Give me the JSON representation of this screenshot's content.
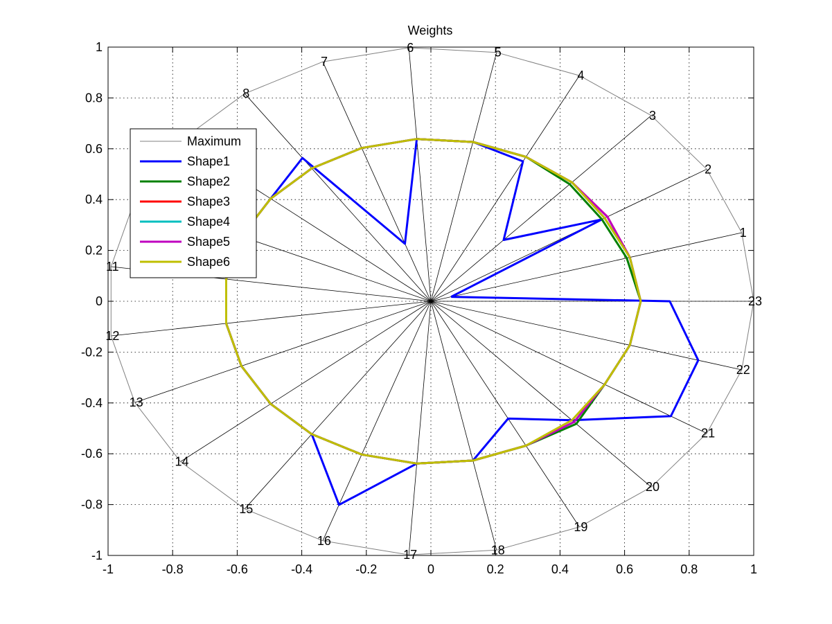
{
  "chart_data": {
    "type": "line",
    "title": "Weights",
    "xlabel": "",
    "ylabel": "",
    "xlim": [
      -1,
      1
    ],
    "ylim": [
      -1,
      1
    ],
    "xticks": [
      "-1",
      "-0.8",
      "-0.6",
      "-0.4",
      "-0.2",
      "0",
      "0.2",
      "0.4",
      "0.6",
      "0.8",
      "1"
    ],
    "yticks": [
      "-1",
      "-0.8",
      "-0.6",
      "-0.4",
      "-0.2",
      "0",
      "0.2",
      "0.4",
      "0.6",
      "0.8",
      "1"
    ],
    "grid": true,
    "legend_position": "upper-left",
    "categories": [
      "1",
      "2",
      "3",
      "4",
      "5",
      "6",
      "7",
      "8",
      "9",
      "10",
      "11",
      "12",
      "13",
      "14",
      "15",
      "16",
      "17",
      "18",
      "19",
      "20",
      "21",
      "22",
      "23"
    ],
    "series": [
      {
        "name": "Maximum",
        "color": "#808080",
        "values": [
          1,
          1,
          1,
          1,
          1,
          1,
          1,
          1,
          1,
          1,
          1,
          1,
          1,
          1,
          1,
          1,
          1,
          1,
          1,
          1,
          1,
          1,
          1
        ]
      },
      {
        "name": "Shape1",
        "color": "#0000ff",
        "values": [
          0.065,
          0.62,
          0.33,
          0.62,
          0.64,
          0.64,
          0.24,
          0.69,
          0.64,
          0.64,
          0.64,
          0.64,
          0.64,
          0.64,
          0.64,
          0.85,
          0.64,
          0.64,
          0.52,
          0.64,
          0.87,
          0.86,
          0.74
        ]
      },
      {
        "name": "Shape2",
        "color": "#008000",
        "values": [
          0.63,
          0.62,
          0.63,
          0.64,
          0.64,
          0.64,
          0.64,
          0.64,
          0.64,
          0.64,
          0.64,
          0.64,
          0.64,
          0.64,
          0.64,
          0.64,
          0.64,
          0.64,
          0.64,
          0.66,
          0.63,
          0.64,
          0.65
        ]
      },
      {
        "name": "Shape3",
        "color": "#ff0000",
        "values": [
          0.64,
          0.64,
          0.64,
          0.64,
          0.64,
          0.64,
          0.64,
          0.64,
          0.64,
          0.64,
          0.64,
          0.64,
          0.64,
          0.64,
          0.64,
          0.64,
          0.64,
          0.64,
          0.64,
          0.65,
          0.63,
          0.64,
          0.65
        ]
      },
      {
        "name": "Shape4",
        "color": "#00bfbf",
        "values": [
          0.64,
          0.63,
          0.64,
          0.64,
          0.64,
          0.64,
          0.64,
          0.64,
          0.64,
          0.64,
          0.64,
          0.64,
          0.64,
          0.64,
          0.64,
          0.64,
          0.64,
          0.64,
          0.64,
          0.65,
          0.63,
          0.64,
          0.65
        ]
      },
      {
        "name": "Shape5",
        "color": "#bf00bf",
        "values": [
          0.64,
          0.64,
          0.64,
          0.64,
          0.64,
          0.64,
          0.64,
          0.64,
          0.64,
          0.64,
          0.64,
          0.64,
          0.64,
          0.64,
          0.64,
          0.64,
          0.64,
          0.64,
          0.64,
          0.65,
          0.63,
          0.64,
          0.65
        ]
      },
      {
        "name": "Shape6",
        "color": "#bfbf00",
        "values": [
          0.64,
          0.63,
          0.64,
          0.64,
          0.64,
          0.64,
          0.64,
          0.64,
          0.64,
          0.64,
          0.64,
          0.64,
          0.64,
          0.64,
          0.64,
          0.64,
          0.64,
          0.64,
          0.64,
          0.64,
          0.63,
          0.64,
          0.65
        ]
      }
    ]
  }
}
